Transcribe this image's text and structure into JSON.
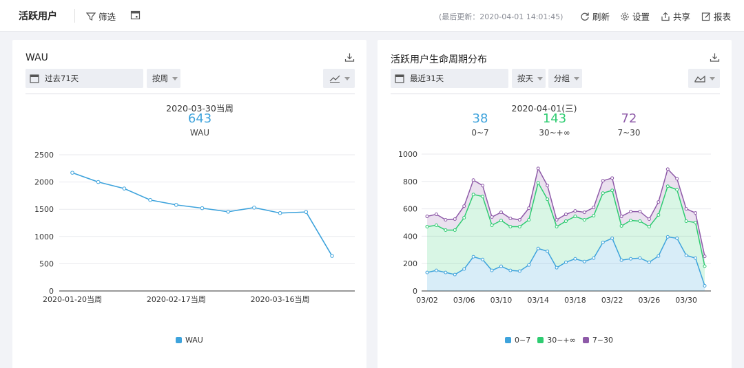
{
  "topbar": {
    "title": "活跃用户",
    "filter_label": "筛选",
    "last_updated": "(最后更新：2020-04-01 14:01:45)",
    "refresh_label": "刷新",
    "settings_label": "设置",
    "share_label": "共享",
    "report_label": "报表"
  },
  "left_card": {
    "title": "WAU",
    "date_range": "过去71天",
    "granularity": "按周",
    "highlight": {
      "date": "2020-03-30当周",
      "value": "643",
      "label": "WAU"
    }
  },
  "right_card": {
    "title": "活跃用户生命周期分布",
    "date_range": "最近31天",
    "granularity": "按天",
    "group_label": "分组",
    "highlight": {
      "date": "2020-04-01(三)",
      "items": [
        {
          "value": "38",
          "label": "0~7"
        },
        {
          "value": "143",
          "label": "30~+∞"
        },
        {
          "value": "72",
          "label": "7~30"
        }
      ]
    }
  },
  "colors": {
    "blue": "#3ea3dc",
    "green": "#2ecc71",
    "purple": "#8e5aa8"
  },
  "chart_data": [
    {
      "type": "line",
      "x": [
        "2020-01-20当周",
        "2020-01-27当周",
        "2020-02-03当周",
        "2020-02-10当周",
        "2020-02-17当周",
        "2020-02-24当周",
        "2020-03-02当周",
        "2020-03-09当周",
        "2020-03-16当周",
        "2020-03-23当周",
        "2020-03-30当周"
      ],
      "xticks": [
        "2020-01-20当周",
        "2020-02-17当周",
        "2020-03-16当周"
      ],
      "series": [
        {
          "name": "WAU",
          "values": [
            2170,
            2000,
            1880,
            1670,
            1580,
            1520,
            1455,
            1530,
            1430,
            1450,
            643
          ]
        }
      ],
      "ylim": [
        0,
        2500
      ],
      "yticks": [
        "2500",
        "2000",
        "1500",
        "1000",
        "500",
        "0"
      ],
      "grid": true,
      "legend": "bottom"
    },
    {
      "type": "area",
      "x": [
        "03/02",
        "03/03",
        "03/04",
        "03/05",
        "03/06",
        "03/07",
        "03/08",
        "03/09",
        "03/10",
        "03/11",
        "03/12",
        "03/13",
        "03/14",
        "03/15",
        "03/16",
        "03/17",
        "03/18",
        "03/19",
        "03/20",
        "03/21",
        "03/22",
        "03/23",
        "03/24",
        "03/25",
        "03/26",
        "03/27",
        "03/28",
        "03/29",
        "03/30",
        "03/31",
        "04/01"
      ],
      "xticks": [
        "03/02",
        "03/06",
        "03/10",
        "03/14",
        "03/18",
        "03/22",
        "03/26",
        "03/30"
      ],
      "stacked": true,
      "series": [
        {
          "name": "0~7",
          "values": [
            135,
            150,
            135,
            120,
            160,
            250,
            230,
            150,
            180,
            150,
            145,
            190,
            310,
            290,
            170,
            210,
            235,
            215,
            240,
            355,
            385,
            225,
            235,
            240,
            210,
            255,
            395,
            385,
            260,
            240,
            38
          ]
        },
        {
          "name": "30~+∞",
          "values": [
            335,
            330,
            310,
            325,
            375,
            455,
            460,
            330,
            335,
            320,
            325,
            330,
            480,
            380,
            300,
            300,
            310,
            305,
            310,
            360,
            350,
            250,
            280,
            270,
            260,
            300,
            370,
            355,
            250,
            260,
            143
          ]
        },
        {
          "name": "7~30",
          "values": [
            75,
            80,
            75,
            80,
            85,
            105,
            80,
            60,
            60,
            60,
            50,
            85,
            105,
            100,
            50,
            50,
            40,
            55,
            60,
            90,
            90,
            70,
            65,
            70,
            55,
            95,
            125,
            80,
            90,
            70,
            72
          ]
        }
      ],
      "ylim": [
        0,
        1000
      ],
      "yticks": [
        "1000",
        "800",
        "600",
        "400",
        "200",
        "0"
      ],
      "grid": true,
      "legend": "bottom"
    }
  ]
}
